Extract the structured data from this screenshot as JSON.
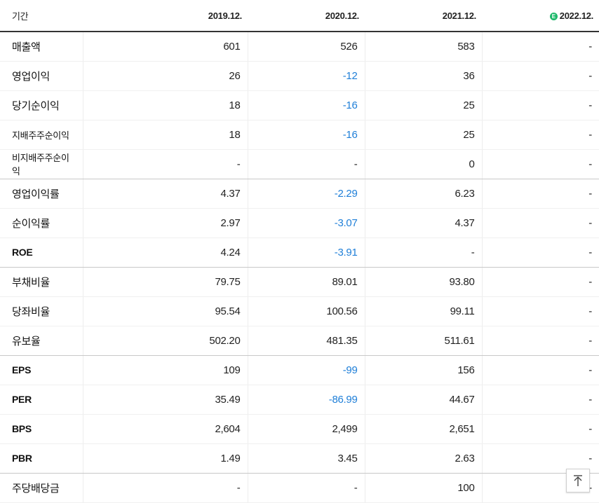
{
  "header": {
    "label": "기간",
    "columns": [
      "2019.12.",
      "2020.12.",
      "2021.12.",
      "2022.12."
    ],
    "estimate_column_index": 3
  },
  "rows": [
    {
      "label": "매출액",
      "values": [
        "601",
        "526",
        "583",
        "-"
      ]
    },
    {
      "label": "영업이익",
      "values": [
        "26",
        "-12",
        "36",
        "-"
      ]
    },
    {
      "label": "당기순이익",
      "values": [
        "18",
        "-16",
        "25",
        "-"
      ]
    },
    {
      "label": "지배주주순이익",
      "values": [
        "18",
        "-16",
        "25",
        "-"
      ]
    },
    {
      "label": "비지배주주순이익",
      "values": [
        "-",
        "-",
        "0",
        "-"
      ]
    },
    {
      "label": "영업이익률",
      "values": [
        "4.37",
        "-2.29",
        "6.23",
        "-"
      ]
    },
    {
      "label": "순이익률",
      "values": [
        "2.97",
        "-3.07",
        "4.37",
        "-"
      ]
    },
    {
      "label": "ROE",
      "values": [
        "4.24",
        "-3.91",
        "-",
        "-"
      ]
    },
    {
      "label": "부채비율",
      "values": [
        "79.75",
        "89.01",
        "93.80",
        "-"
      ]
    },
    {
      "label": "당좌비율",
      "values": [
        "95.54",
        "100.56",
        "99.11",
        "-"
      ]
    },
    {
      "label": "유보율",
      "values": [
        "502.20",
        "481.35",
        "511.61",
        "-"
      ]
    },
    {
      "label": "EPS",
      "values": [
        "109",
        "-99",
        "156",
        "-"
      ]
    },
    {
      "label": "PER",
      "values": [
        "35.49",
        "-86.99",
        "44.67",
        "-"
      ]
    },
    {
      "label": "BPS",
      "values": [
        "2,604",
        "2,499",
        "2,651",
        "-"
      ]
    },
    {
      "label": "PBR",
      "values": [
        "1.49",
        "3.45",
        "2.63",
        "-"
      ]
    },
    {
      "label": "주당배당금",
      "values": [
        "-",
        "-",
        "100",
        "-"
      ]
    }
  ],
  "colors": {
    "negative": "#1f7fd8",
    "estimate_badge": "#1db86a"
  },
  "icons": {
    "estimate": "estimate-badge-icon",
    "scroll_top": "arrow-up-to-top-icon"
  }
}
